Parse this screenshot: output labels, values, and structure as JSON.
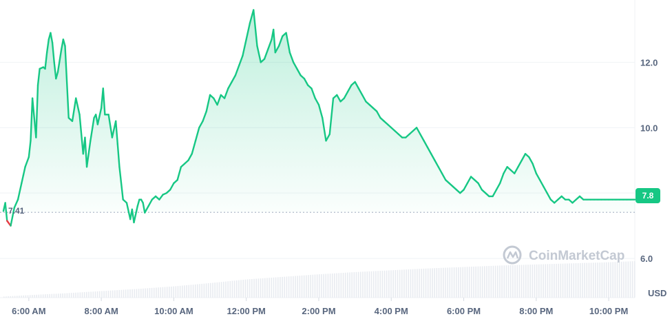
{
  "chart_data": {
    "type": "area",
    "currency_label": "USD",
    "watermark": "CoinMarketCap",
    "start_label": "7.41",
    "current_label": "7.8",
    "baseline": 7.41,
    "ylim": [
      4.8,
      13.8
    ],
    "y_ticks": [
      {
        "value": 6.0,
        "label": "6.0"
      },
      {
        "value": 8.0,
        "label": ""
      },
      {
        "value": 10.0,
        "label": "10.0"
      },
      {
        "value": 12.0,
        "label": "12.0"
      }
    ],
    "x_ticks": [
      {
        "hour": 6,
        "label": "6:00 AM"
      },
      {
        "hour": 8,
        "label": "8:00 AM"
      },
      {
        "hour": 10,
        "label": "10:00 AM"
      },
      {
        "hour": 12,
        "label": "12:00 PM"
      },
      {
        "hour": 14,
        "label": "2:00 PM"
      },
      {
        "hour": 16,
        "label": "4:00 PM"
      },
      {
        "hour": 18,
        "label": "6:00 PM"
      },
      {
        "hour": 20,
        "label": "8:00 PM"
      },
      {
        "hour": 22,
        "label": "10:00 PM"
      }
    ],
    "xlim": [
      5.3,
      22.72
    ],
    "colors": {
      "up": "#16c784",
      "down": "#ea3943",
      "baseline": "#a6b0c3",
      "grid": "#eff2f5",
      "volume": "#e8ebf0",
      "badge": "#16c784"
    },
    "price": {
      "hours": [
        5.3,
        5.35,
        5.4,
        5.5,
        5.6,
        5.7,
        5.8,
        5.85,
        5.9,
        6.0,
        6.05,
        6.1,
        6.2,
        6.25,
        6.3,
        6.4,
        6.45,
        6.5,
        6.55,
        6.6,
        6.65,
        6.7,
        6.75,
        6.8,
        6.9,
        6.95,
        7.0,
        7.1,
        7.2,
        7.3,
        7.4,
        7.5,
        7.55,
        7.6,
        7.7,
        7.8,
        7.85,
        7.9,
        8.0,
        8.05,
        8.1,
        8.2,
        8.3,
        8.4,
        8.45,
        8.5,
        8.6,
        8.7,
        8.8,
        8.85,
        8.9,
        9.0,
        9.05,
        9.1,
        9.15,
        9.2,
        9.3,
        9.4,
        9.5,
        9.6,
        9.7,
        9.8,
        9.9,
        10.0,
        10.1,
        10.2,
        10.3,
        10.4,
        10.5,
        10.6,
        10.7,
        10.8,
        10.9,
        11.0,
        11.1,
        11.2,
        11.3,
        11.4,
        11.5,
        11.6,
        11.7,
        11.8,
        11.9,
        12.0,
        12.1,
        12.2,
        12.3,
        12.4,
        12.5,
        12.6,
        12.7,
        12.75,
        12.8,
        12.9,
        13.0,
        13.1,
        13.2,
        13.3,
        13.4,
        13.5,
        13.6,
        13.7,
        13.8,
        13.9,
        14.0,
        14.1,
        14.2,
        14.3,
        14.4,
        14.5,
        14.6,
        14.7,
        14.8,
        14.9,
        15.0,
        15.1,
        15.2,
        15.3,
        15.4,
        15.5,
        15.6,
        15.7,
        15.8,
        15.9,
        16.0,
        16.1,
        16.2,
        16.3,
        16.4,
        16.5,
        16.6,
        16.7,
        16.8,
        16.9,
        17.0,
        17.1,
        17.2,
        17.3,
        17.4,
        17.5,
        17.6,
        17.7,
        17.8,
        17.9,
        18.0,
        18.1,
        18.2,
        18.3,
        18.4,
        18.5,
        18.6,
        18.7,
        18.8,
        18.9,
        19.0,
        19.1,
        19.2,
        19.3,
        19.4,
        19.5,
        19.6,
        19.7,
        19.8,
        19.9,
        20.0,
        20.1,
        20.2,
        20.3,
        20.4,
        20.5,
        20.6,
        20.7,
        20.8,
        20.9,
        21.0,
        21.1,
        21.2,
        21.3,
        21.4,
        21.5,
        21.6,
        21.7,
        21.8,
        21.9,
        22.0,
        22.1,
        22.2,
        22.3,
        22.4,
        22.5,
        22.6,
        22.72
      ],
      "values": [
        7.45,
        7.7,
        7.15,
        7.0,
        7.55,
        7.8,
        8.3,
        8.55,
        8.8,
        9.1,
        9.6,
        10.9,
        9.7,
        11.3,
        11.8,
        11.85,
        11.8,
        12.3,
        12.7,
        12.9,
        12.6,
        12.0,
        11.5,
        11.7,
        12.4,
        12.7,
        12.5,
        10.3,
        10.2,
        10.9,
        10.4,
        9.2,
        9.7,
        8.8,
        9.6,
        10.3,
        10.4,
        10.1,
        10.6,
        11.2,
        10.4,
        10.4,
        9.7,
        10.2,
        9.5,
        8.8,
        7.8,
        7.7,
        7.2,
        7.5,
        7.1,
        7.6,
        7.8,
        7.8,
        7.7,
        7.4,
        7.6,
        7.8,
        7.9,
        7.8,
        7.95,
        8.0,
        8.1,
        8.3,
        8.4,
        8.8,
        8.9,
        9.0,
        9.2,
        9.6,
        10.0,
        10.2,
        10.5,
        11.0,
        10.9,
        10.7,
        11.0,
        10.9,
        11.2,
        11.4,
        11.6,
        11.9,
        12.2,
        12.7,
        13.2,
        13.6,
        12.5,
        12.0,
        12.1,
        12.4,
        12.7,
        13.0,
        12.3,
        12.5,
        12.8,
        12.9,
        12.3,
        12.0,
        11.8,
        11.6,
        11.5,
        11.3,
        11.2,
        10.9,
        10.7,
        10.3,
        9.6,
        9.8,
        10.9,
        11.0,
        10.8,
        10.9,
        11.1,
        11.3,
        11.4,
        11.2,
        11.0,
        10.8,
        10.7,
        10.6,
        10.5,
        10.3,
        10.2,
        10.1,
        10.0,
        9.9,
        9.8,
        9.7,
        9.7,
        9.8,
        9.9,
        10.0,
        9.8,
        9.6,
        9.4,
        9.2,
        9.0,
        8.8,
        8.6,
        8.4,
        8.3,
        8.2,
        8.1,
        8.0,
        8.1,
        8.3,
        8.5,
        8.4,
        8.3,
        8.1,
        8.0,
        7.9,
        7.9,
        8.1,
        8.3,
        8.6,
        8.8,
        8.7,
        8.6,
        8.8,
        9.0,
        9.2,
        9.1,
        8.9,
        8.6,
        8.4,
        8.2,
        8.0,
        7.8,
        7.7,
        7.8,
        7.9,
        7.8,
        7.8,
        7.7,
        7.8,
        7.9,
        7.8,
        7.8,
        7.8,
        7.8,
        7.8,
        7.8,
        7.8,
        7.8,
        7.8,
        7.8,
        7.8,
        7.8,
        7.8,
        7.8,
        7.8
      ]
    },
    "volume": {
      "hours": [
        5.3,
        6.0,
        7.0,
        8.0,
        9.0,
        10.0,
        11.0,
        12.0,
        13.0,
        14.0,
        15.0,
        16.0,
        17.0,
        18.0,
        19.0,
        20.0,
        21.0,
        22.0,
        22.72
      ],
      "values": [
        0.03,
        0.07,
        0.12,
        0.18,
        0.24,
        0.31,
        0.4,
        0.5,
        0.57,
        0.64,
        0.7,
        0.75,
        0.8,
        0.84,
        0.88,
        0.91,
        0.94,
        0.97,
        1.0
      ]
    }
  }
}
